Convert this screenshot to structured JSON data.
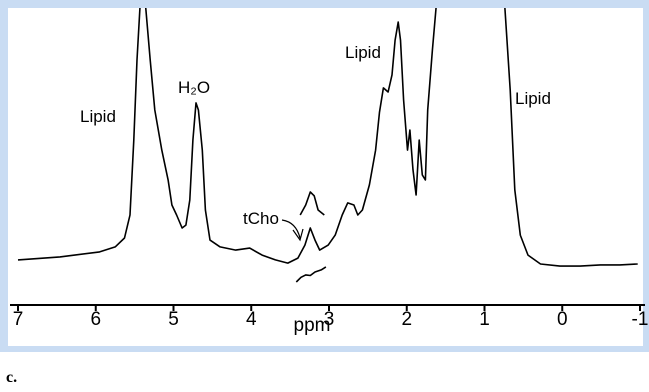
{
  "chart_data": {
    "type": "line",
    "xlabel": "ppm",
    "xlim": [
      7,
      -1
    ],
    "xticks": [
      7,
      6,
      5,
      4,
      3,
      2,
      1,
      0,
      -1
    ],
    "ylim": [
      0,
      100
    ],
    "series": [
      {
        "color": "#000000",
        "x": [
          7.0,
          6.46,
          5.95,
          5.75,
          5.63,
          5.56,
          5.51,
          5.47,
          5.43,
          5.36,
          5.3,
          5.24,
          5.15,
          5.07,
          5.02,
          4.96,
          4.89,
          4.84,
          4.79,
          4.75,
          4.71,
          4.68,
          4.63,
          4.59,
          4.53,
          4.4,
          4.2,
          4.02,
          3.86,
          3.69,
          3.53,
          3.4,
          3.31,
          3.24,
          3.18,
          3.12,
          3.01,
          2.92,
          2.83,
          2.76,
          2.68,
          2.63,
          2.57,
          2.48,
          2.4,
          2.35,
          2.3,
          2.24,
          2.19,
          2.15,
          2.11,
          2.08,
          2.04,
          1.99,
          1.96,
          1.92,
          1.88,
          1.84,
          1.8,
          1.76,
          1.73,
          1.67,
          1.62,
          1.2,
          0.74,
          0.67,
          0.61,
          0.54,
          0.44,
          0.28,
          0.03,
          -0.23,
          -0.49,
          -0.74,
          -0.97
        ],
        "values": [
          15.3,
          16.3,
          18.0,
          19.7,
          22.7,
          30.5,
          55.9,
          83.1,
          101.7,
          101.7,
          83.1,
          66.1,
          52.5,
          42.4,
          33.9,
          30.5,
          26.1,
          27.1,
          35.6,
          55.9,
          68.5,
          66.1,
          52.5,
          32.2,
          22.0,
          19.7,
          18.6,
          19.3,
          16.9,
          15.3,
          14.2,
          15.9,
          20.3,
          26.1,
          22.0,
          18.6,
          20.3,
          23.7,
          30.5,
          34.6,
          33.9,
          30.5,
          32.2,
          40.7,
          52.5,
          65.4,
          73.6,
          72.2,
          78.0,
          89.8,
          95.9,
          89.8,
          69.5,
          52.5,
          59.3,
          45.8,
          37.3,
          55.9,
          44.1,
          42.4,
          66.1,
          86.4,
          101.7,
          null,
          101.7,
          72.9,
          39.0,
          23.7,
          16.9,
          13.9,
          13.2,
          13.2,
          13.6,
          13.6,
          13.9
        ]
      },
      {
        "color": "#000000",
        "x": [
          3.37,
          3.3,
          3.24,
          3.19,
          3.14,
          3.06
        ],
        "values": [
          30.5,
          33.9,
          38.3,
          37.0,
          32.2,
          30.5
        ]
      },
      {
        "color": "#000000",
        "x": [
          3.42,
          3.36,
          3.3,
          3.24,
          3.18,
          3.1,
          3.04
        ],
        "values": [
          7.8,
          9.4,
          10.2,
          10.0,
          11.2,
          11.9,
          12.9
        ]
      }
    ],
    "annotations": [
      "Lipid",
      "H₂O",
      "Lipid",
      "Lipid",
      "tCho"
    ]
  },
  "caption": "c."
}
